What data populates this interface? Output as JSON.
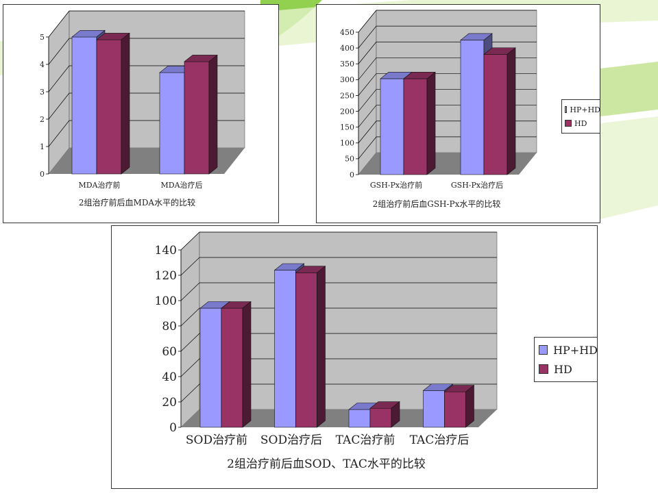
{
  "colors": {
    "hp_hd": "#9999ff",
    "hd": "#993366",
    "wall": "#c0c0c0",
    "floor": "#808080",
    "grid": "#000000",
    "accent_green": "#92d050",
    "accent_light": "#e3f2c8"
  },
  "legend": {
    "series1": "HP+HD",
    "series2": "HD"
  },
  "chart_data": [
    {
      "type": "bar",
      "categories": [
        "MDA治疗前",
        "MDA治疗后"
      ],
      "series": [
        {
          "name": "HP+HD",
          "values": [
            5.0,
            3.7
          ]
        },
        {
          "name": "HD",
          "values": [
            4.9,
            4.1
          ]
        }
      ],
      "title": "2组治疗前后血MDA水平的比较",
      "ylim": [
        0,
        5
      ],
      "yticks": [
        "0",
        "1",
        "2",
        "3",
        "4",
        "5"
      ],
      "legend": "none",
      "grid": true
    },
    {
      "type": "bar",
      "categories": [
        "GSH-Px治疗前",
        "GSH-Px治疗后"
      ],
      "series": [
        {
          "name": "HP+HD",
          "values": [
            303,
            425
          ]
        },
        {
          "name": "HD",
          "values": [
            303,
            380
          ]
        }
      ],
      "title": "2组治疗前后血GSH-Px水平的比较",
      "ylim": [
        0,
        450
      ],
      "yticks": [
        "0",
        "50",
        "100",
        "150",
        "200",
        "250",
        "300",
        "350",
        "400",
        "450"
      ],
      "legend": "right",
      "grid": true
    },
    {
      "type": "bar",
      "categories": [
        "SOD治疗前",
        "SOD治疗后",
        "TAC治疗前",
        "TAC治疗后"
      ],
      "series": [
        {
          "name": "HP+HD",
          "values": [
            94,
            124,
            14,
            29
          ]
        },
        {
          "name": "HD",
          "values": [
            94,
            122,
            15,
            28
          ]
        }
      ],
      "title": "2组治疗前后血SOD、TAC水平的比较",
      "ylim": [
        0,
        140
      ],
      "yticks": [
        "0",
        "20",
        "40",
        "60",
        "80",
        "100",
        "120",
        "140"
      ],
      "legend": "right",
      "grid": true
    }
  ]
}
